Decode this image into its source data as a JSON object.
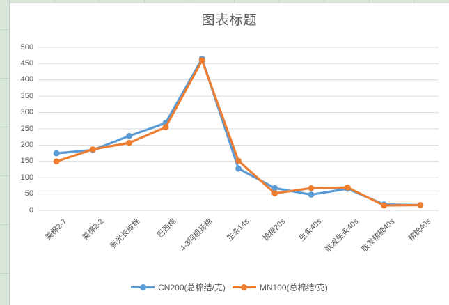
{
  "chart_data": {
    "type": "line",
    "title": "图表标题",
    "categories": [
      "美棉2-7",
      "美棉2-2",
      "新光长绒棉",
      "巴西棉",
      "4-3阿根廷棉",
      "生条14s",
      "梳棉20s",
      "生条40s",
      "联发生条40s",
      "联发精梳40s",
      "精梳40s"
    ],
    "series": [
      {
        "name": "CN200(总棉结/克)",
        "color": "#5b9bd5",
        "values": [
          175,
          185,
          228,
          268,
          465,
          128,
          68,
          48,
          66,
          18,
          16
        ]
      },
      {
        "name": "MN100(总棉结/克)",
        "color": "#ed7d31",
        "values": [
          150,
          187,
          207,
          255,
          460,
          152,
          52,
          68,
          70,
          15,
          16
        ]
      }
    ],
    "ylim": [
      0,
      500
    ],
    "ytick_step": 50,
    "grid": true,
    "legend_position": "bottom",
    "marker": "circle",
    "title_color": "#595959",
    "axis_text_color": "#595959",
    "gridline_color": "#d9d9d9"
  },
  "spreadsheet": {
    "cell_fill": "#d8e6da",
    "cell_border": "#c2d5c6"
  }
}
